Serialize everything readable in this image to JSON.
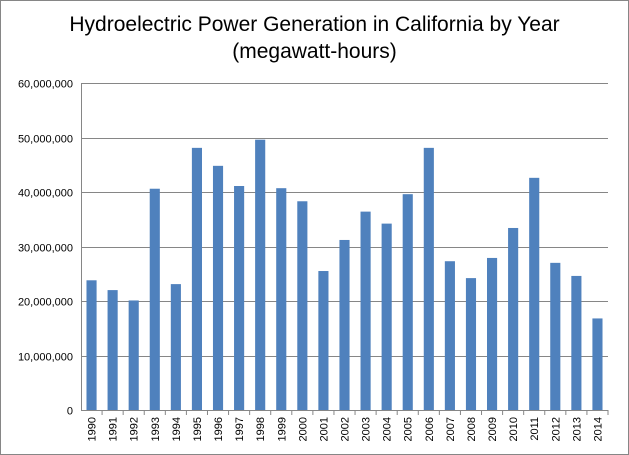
{
  "chart_data": {
    "type": "bar",
    "title": "Hydroelectric Power Generation in California by Year (megawatt-hours)",
    "xlabel": "",
    "ylabel": "",
    "categories": [
      "1990",
      "1991",
      "1992",
      "1993",
      "1994",
      "1995",
      "1996",
      "1997",
      "1998",
      "1999",
      "2000",
      "2001",
      "2002",
      "2003",
      "2004",
      "2005",
      "2006",
      "2007",
      "2008",
      "2009",
      "2010",
      "2011",
      "2012",
      "2013",
      "2014"
    ],
    "values": [
      23800000,
      22000000,
      20100000,
      40600000,
      23100000,
      48100000,
      44800000,
      41100000,
      49600000,
      40700000,
      38300000,
      25500000,
      31200000,
      36400000,
      34200000,
      39600000,
      48100000,
      27300000,
      24200000,
      27900000,
      33400000,
      42600000,
      27000000,
      24600000,
      16800000
    ],
    "ylim": [
      0,
      60000000
    ],
    "yticks": [
      0,
      10000000,
      20000000,
      30000000,
      40000000,
      50000000,
      60000000
    ],
    "ytick_labels": [
      "0",
      "10,000,000",
      "20,000,000",
      "30,000,000",
      "40,000,000",
      "50,000,000",
      "60,000,000"
    ],
    "grid": true,
    "legend": "none",
    "bar_color": "#4f81bd",
    "grid_color": "#868686"
  }
}
